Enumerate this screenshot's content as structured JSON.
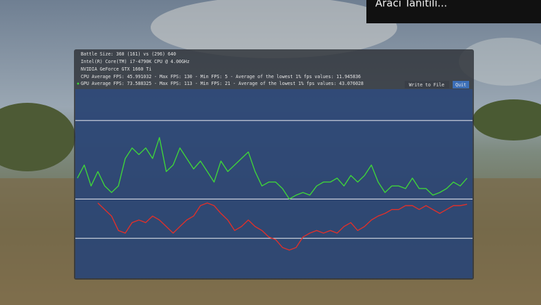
{
  "notification": "Aracı Tanıtılı...",
  "overlay": {
    "lines": [
      "Battle Size: 360 (161) vs (296) 640",
      "Intel(R) Core(TM) i7-4790K CPU @ 4.00GHz",
      "NVIDIA GeForce GTX 1660 Ti",
      "CPU Average FPS: 45.991032 - Max FPS: 130 - Min FPS: 5 - Average of the lowest 1% fps values: 11.945836",
      "GPU Average FPS: 73.588325 - Max FPS: 113 - Min FPS: 21 - Average of the lowest 1% fps values: 43.076028"
    ],
    "buttons": [
      "Write to File",
      "Quit"
    ]
  },
  "chart_data": {
    "type": "line",
    "x": [
      110,
      120,
      130,
      140,
      150,
      160,
      170,
      180,
      190,
      200,
      210,
      220,
      230,
      240,
      250,
      260,
      270,
      280,
      290,
      300,
      310,
      320,
      330,
      340,
      350,
      360,
      370,
      380,
      390,
      400,
      410,
      420,
      430,
      440,
      450,
      460,
      470,
      480,
      490,
      500,
      510,
      520,
      530,
      540,
      550,
      560,
      570,
      580,
      590,
      600,
      610,
      620,
      630,
      640,
      650,
      660,
      670,
      680
    ],
    "xlim": [
      105,
      690
    ],
    "ylim": [
      0,
      144
    ],
    "guide_lines": [
      30,
      60,
      120
    ],
    "series": [
      {
        "color": "#3fd43a",
        "values": [
          76,
          86,
          70,
          81,
          70,
          65,
          70,
          91,
          99,
          94,
          99,
          91,
          107,
          81,
          86,
          99,
          91,
          83,
          89,
          81,
          73,
          89,
          81,
          86,
          91,
          96,
          81,
          70,
          73,
          73,
          68,
          60,
          63,
          65,
          63,
          70,
          73,
          73,
          76,
          70,
          78,
          73,
          78,
          86,
          73,
          65,
          70,
          70,
          68,
          76,
          68,
          68,
          63,
          65,
          68,
          73,
          70,
          76
        ]
      },
      {
        "color": "#e0302a",
        "values": [
          null,
          null,
          null,
          57,
          52,
          47,
          36,
          34,
          42,
          44,
          42,
          47,
          44,
          39,
          34,
          39,
          44,
          47,
          55,
          57,
          55,
          49,
          44,
          36,
          39,
          44,
          39,
          36,
          31,
          29,
          23,
          21,
          23,
          31,
          34,
          36,
          34,
          36,
          34,
          39,
          42,
          36,
          39,
          44,
          47,
          49,
          52,
          52,
          55,
          55,
          52,
          55,
          52,
          49,
          52,
          55,
          55,
          56
        ]
      }
    ]
  }
}
